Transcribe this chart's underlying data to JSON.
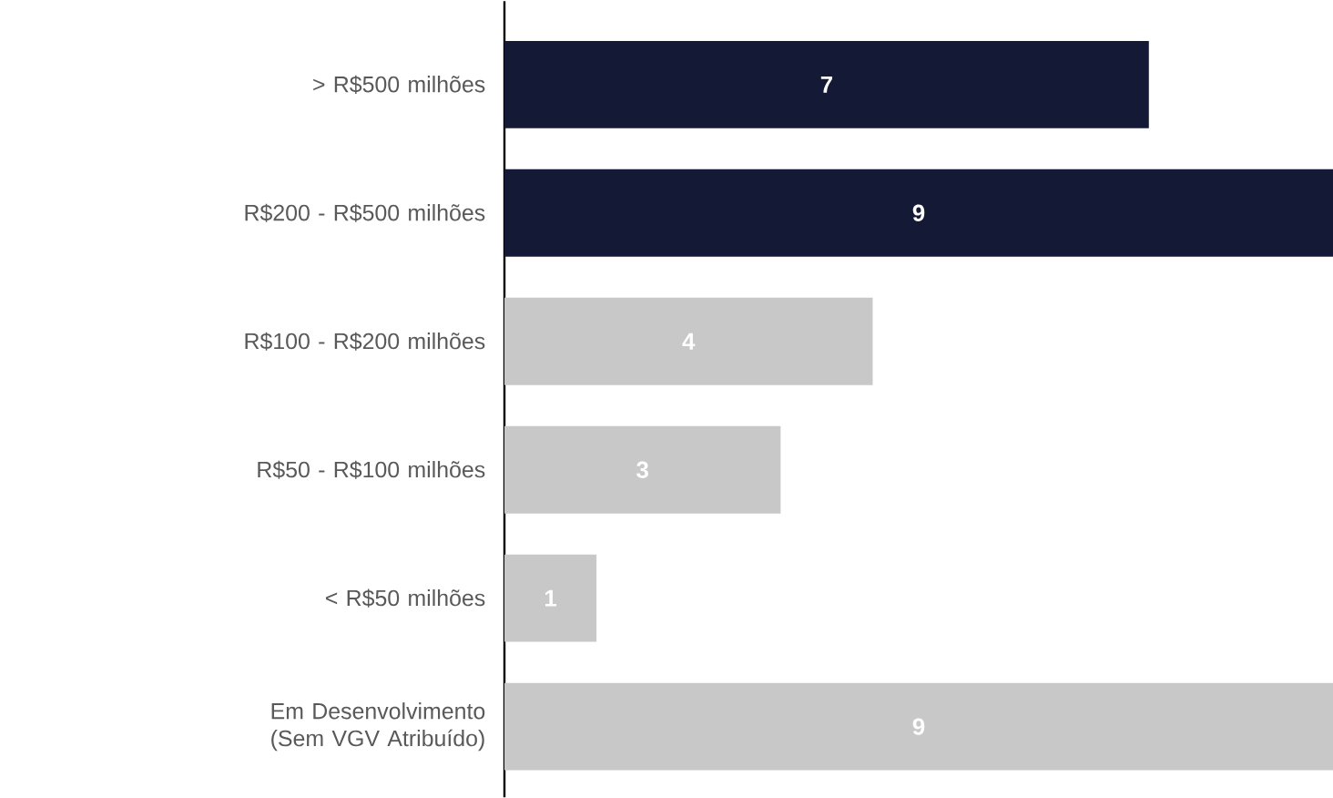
{
  "chart_data": {
    "type": "bar",
    "orientation": "horizontal",
    "categories": [
      "> R$500 milhões",
      "R$200 - R$500 milhões",
      "R$100 - R$200 milhões",
      "R$50 - R$100 milhões",
      "< R$50 milhões",
      "Em Desenvolvimento (Sem VGV Atribuído)"
    ],
    "values": [
      7,
      9,
      4,
      3,
      1,
      9
    ],
    "colors": [
      "#141a35",
      "#141a35",
      "#c8c8c8",
      "#c8c8c8",
      "#c8c8c8",
      "#c8c8c8"
    ],
    "xlim": [
      0,
      9
    ],
    "data_labels": true,
    "tick_labels": "y",
    "grid": false
  }
}
